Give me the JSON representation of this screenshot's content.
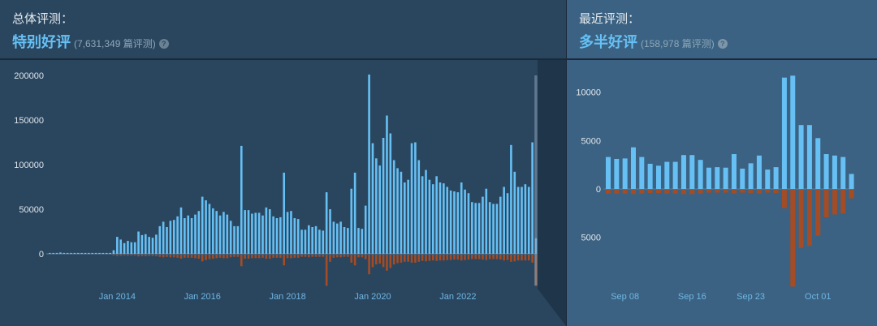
{
  "overall": {
    "title": "总体评测：",
    "rating": "特别好评",
    "count": "(7,631,349 篇评测)",
    "help_icon": "question-circle-icon",
    "help_label": "?"
  },
  "recent": {
    "title": "最近评测：",
    "rating": "多半好评",
    "count": "(158,978 篇评测)",
    "help_icon": "question-circle-icon",
    "help_label": "?"
  },
  "colors": {
    "positive": "#66c0f4",
    "negative": "#a34c25",
    "rating": "#66c0f4"
  },
  "chart_data": [
    {
      "type": "bar",
      "granularity": "month",
      "start_month": "2012-06",
      "yticks": [
        200000,
        150000,
        100000,
        50000,
        0
      ],
      "ylim": [
        -40000,
        200000
      ],
      "xtick_labels": [
        {
          "label": "Jan 2014",
          "index": 19
        },
        {
          "label": "Jan 2016",
          "index": 43
        },
        {
          "label": "Jan 2018",
          "index": 67
        },
        {
          "label": "Jan 2020",
          "index": 91
        },
        {
          "label": "Jan 2022",
          "index": 115
        }
      ],
      "positive": [
        1000,
        1000,
        1000,
        1500,
        1000,
        1000,
        1000,
        1000,
        1000,
        1000,
        1000,
        1000,
        1000,
        1000,
        1000,
        1000,
        1000,
        1000,
        4000,
        19000,
        16000,
        12000,
        14500,
        13000,
        13000,
        25000,
        21000,
        22000,
        19000,
        18000,
        21500,
        31000,
        36000,
        30000,
        37000,
        38000,
        42000,
        52000,
        40000,
        43000,
        40000,
        44000,
        48000,
        64000,
        60000,
        56000,
        51000,
        48000,
        43000,
        47000,
        44000,
        37000,
        31000,
        31000,
        121000,
        49000,
        49000,
        45000,
        46000,
        46000,
        43000,
        52000,
        50000,
        42000,
        40000,
        41000,
        91000,
        47000,
        48000,
        40000,
        39000,
        27000,
        27000,
        32000,
        30000,
        31000,
        27000,
        26000,
        69000,
        50000,
        36000,
        34000,
        36000,
        30000,
        29000,
        73000,
        91000,
        29000,
        28000,
        54000,
        201000,
        124000,
        107000,
        99000,
        130000,
        155000,
        135000,
        105000,
        96000,
        92000,
        80000,
        83000,
        124000,
        125000,
        105000,
        87000,
        94000,
        83000,
        78000,
        87000,
        80000,
        79000,
        75000,
        71000,
        70000,
        69000,
        80000,
        72000,
        68000,
        58000,
        57000,
        57000,
        64000,
        73000,
        58000,
        56000,
        56000,
        64000,
        75000,
        68000,
        122000,
        92000,
        75000,
        75000,
        78000,
        75000,
        125000,
        17500
      ],
      "negative": [
        0,
        0,
        0,
        0,
        0,
        0,
        0,
        0,
        0,
        0,
        0,
        0,
        0,
        0,
        0,
        0,
        0,
        0,
        300,
        1500,
        1200,
        1000,
        1200,
        1000,
        1000,
        2000,
        1700,
        1800,
        1500,
        1500,
        1700,
        2500,
        3000,
        2500,
        3000,
        3000,
        3500,
        4500,
        3500,
        3500,
        3500,
        4000,
        4500,
        7500,
        6000,
        5000,
        4500,
        4000,
        3500,
        4000,
        4000,
        3000,
        2500,
        2500,
        13000,
        4500,
        4500,
        4000,
        4000,
        4000,
        3500,
        4500,
        4500,
        3500,
        3500,
        3500,
        12000,
        4000,
        4000,
        3500,
        3500,
        2500,
        2500,
        3000,
        2500,
        2500,
        2500,
        2500,
        35000,
        8000,
        3500,
        3000,
        3000,
        2500,
        2500,
        9000,
        12000,
        3000,
        3000,
        5000,
        22000,
        14000,
        11000,
        10000,
        14000,
        18000,
        15000,
        11000,
        9500,
        9000,
        8000,
        8000,
        9000,
        9000,
        8000,
        7000,
        7500,
        7000,
        6500,
        7000,
        6500,
        6500,
        6000,
        6000,
        5500,
        5500,
        6500,
        6000,
        5500,
        5000,
        5000,
        5000,
        5500,
        6000,
        5000,
        5000,
        5000,
        5500,
        6500,
        6000,
        8000,
        7500,
        6500,
        6500,
        6500,
        6500,
        9000,
        35000
      ]
    },
    {
      "type": "bar",
      "granularity": "day",
      "start_date": "2023-09-06",
      "yticks": [
        10000,
        5000,
        0,
        -5000
      ],
      "ytick_labels": [
        "10000",
        "5000",
        "0",
        "5000"
      ],
      "ylim": [
        -10000,
        12000
      ],
      "xtick_labels": [
        {
          "label": "Sep 08",
          "index": 2
        },
        {
          "label": "Sep 16",
          "index": 10
        },
        {
          "label": "Sep 23",
          "index": 17
        },
        {
          "label": "Oct 01",
          "index": 25
        }
      ],
      "positive": [
        3300,
        3100,
        3150,
        4300,
        3300,
        2600,
        2400,
        2800,
        2800,
        3500,
        3500,
        3000,
        2200,
        2250,
        2200,
        3600,
        2100,
        2650,
        3450,
        2000,
        2250,
        11500,
        11700,
        6600,
        6600,
        5250,
        3600,
        3450,
        3300,
        1550
      ],
      "negative": [
        400,
        400,
        400,
        450,
        400,
        350,
        350,
        400,
        400,
        450,
        450,
        400,
        300,
        300,
        300,
        400,
        300,
        350,
        400,
        300,
        350,
        1900,
        10000,
        6000,
        5800,
        4750,
        2850,
        2550,
        2450,
        900
      ]
    }
  ]
}
